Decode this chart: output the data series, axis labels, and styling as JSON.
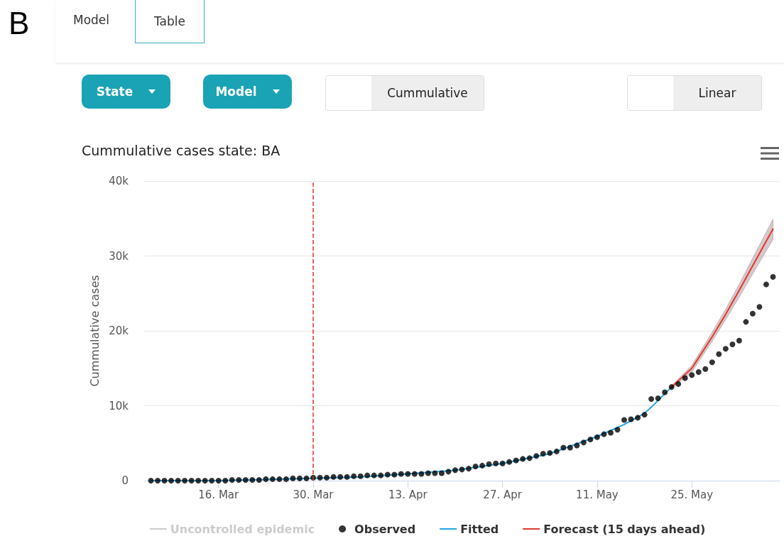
{
  "chart_data": [
    {
      "type": "other",
      "annotations": [
        "B",
        "Model",
        "Table",
        "State",
        "Model",
        "Cummulative",
        "Linear"
      ]
    },
    {
      "type": "line",
      "title": "Cummulative cases state: BA",
      "ylabel": "Cummulative cases",
      "xlim": [
        "--03-05",
        "--06-07"
      ],
      "xticks": [
        {
          "value": "--03-16",
          "label": "16. Mar"
        },
        {
          "value": "--03-30",
          "label": "30. Mar"
        },
        {
          "value": "--04-13",
          "label": "13. Apr"
        },
        {
          "value": "--04-27",
          "label": "27. Apr"
        },
        {
          "value": "--05-11",
          "label": "11. May"
        },
        {
          "value": "--05-25",
          "label": "25. May"
        }
      ],
      "ylim": [
        0,
        40000
      ],
      "yticks": [
        {
          "value": 0,
          "label": "0"
        },
        {
          "value": 10000,
          "label": "10k"
        },
        {
          "value": 20000,
          "label": "20k"
        },
        {
          "value": 30000,
          "label": "30k"
        },
        {
          "value": 40000,
          "label": "40k"
        }
      ],
      "grid": "y",
      "legend": "bottom",
      "ref_lines": [
        {
          "axis": "x",
          "value": "--03-30",
          "color": "#e8312a",
          "line_style": "dashed"
        }
      ],
      "series": [
        {
          "name": "Uncontrolled epidemic",
          "type": "line",
          "line_style": "dashed"
        },
        {
          "name": "Observed",
          "type": "scatter",
          "color": "#000000",
          "marker": "circle",
          "x": [
            "--03-06",
            "--03-07",
            "--03-08",
            "--03-09",
            "--03-10",
            "--03-11",
            "--03-12",
            "--03-13",
            "--03-14",
            "--03-15",
            "--03-16",
            "--03-17",
            "--03-18",
            "--03-19",
            "--03-20",
            "--03-21",
            "--03-22",
            "--03-23",
            "--03-24",
            "--03-25",
            "--03-26",
            "--03-27",
            "--03-28",
            "--03-29",
            "--03-30",
            "--03-31",
            "--04-01",
            "--04-02",
            "--04-03",
            "--04-04",
            "--04-05",
            "--04-06",
            "--04-07",
            "--04-08",
            "--04-09",
            "--04-10",
            "--04-11",
            "--04-12",
            "--04-13",
            "--04-14",
            "--04-15",
            "--04-16",
            "--04-17",
            "--04-18",
            "--04-19",
            "--04-20",
            "--04-21",
            "--04-22",
            "--04-23",
            "--04-24",
            "--04-25",
            "--04-26",
            "--04-27",
            "--04-28",
            "--04-29",
            "--04-30",
            "--05-01",
            "--05-02",
            "--05-03",
            "--05-04",
            "--05-05",
            "--05-06",
            "--05-07",
            "--05-08",
            "--05-09",
            "--05-10",
            "--05-11",
            "--05-12",
            "--05-13",
            "--05-14",
            "--05-15",
            "--05-16",
            "--05-17",
            "--05-18",
            "--05-19",
            "--05-20",
            "--05-21",
            "--05-22",
            "--05-23",
            "--05-24",
            "--05-25",
            "--05-26",
            "--05-27",
            "--05-28",
            "--05-29",
            "--05-30",
            "--05-31",
            "--06-01",
            "--06-02",
            "--06-03",
            "--06-04",
            "--06-05",
            "--06-06"
          ],
          "values": [
            0,
            0,
            0,
            0,
            0,
            0,
            0,
            0,
            0,
            0,
            0,
            0,
            100,
            100,
            100,
            100,
            100,
            200,
            200,
            200,
            200,
            300,
            300,
            300,
            400,
            400,
            400,
            500,
            500,
            500,
            600,
            600,
            700,
            700,
            700,
            800,
            800,
            900,
            900,
            900,
            900,
            1000,
            1000,
            1000,
            1200,
            1400,
            1500,
            1600,
            1900,
            2000,
            2200,
            2300,
            2300,
            2500,
            2700,
            2900,
            3000,
            3300,
            3600,
            3700,
            3900,
            4400,
            4400,
            4700,
            5100,
            5500,
            5800,
            6200,
            6400,
            6800,
            8100,
            8200,
            8400,
            8800,
            10900,
            11000,
            11800,
            12500,
            12900,
            13700,
            14100,
            14500,
            14900,
            15800,
            16900,
            17600,
            18200,
            18700,
            21200,
            22300,
            23200,
            26200,
            27200
          ]
        },
        {
          "name": "Fitted",
          "type": "line",
          "color": "#1ea6e0",
          "line_style": "solid",
          "x": [
            "--03-06",
            "--03-16",
            "--03-30",
            "--04-06",
            "--04-13",
            "--04-20",
            "--04-27",
            "--05-04",
            "--05-11",
            "--05-15",
            "--05-18",
            "--05-19",
            "--05-20",
            "--05-21",
            "--05-22"
          ],
          "values": [
            0,
            0,
            300,
            500,
            900,
            1400,
            2300,
            3600,
            5900,
            7500,
            9000,
            9800,
            10700,
            11600,
            12500
          ]
        },
        {
          "name": "Forecast (15 days ahead)",
          "type": "line",
          "color": "#e0392b",
          "line_style": "solid",
          "x": [
            "--05-22",
            "--05-25",
            "--05-28",
            "--05-30",
            "--06-01",
            "--06-03",
            "--06-06"
          ],
          "values": [
            12500,
            15000,
            19200,
            22200,
            25400,
            28700,
            33600
          ],
          "lower": [
            12300,
            14500,
            18600,
            21500,
            24500,
            27600,
            32200
          ],
          "upper": [
            12700,
            15400,
            19800,
            22900,
            26200,
            29700,
            34900
          ]
        }
      ]
    }
  ]
}
